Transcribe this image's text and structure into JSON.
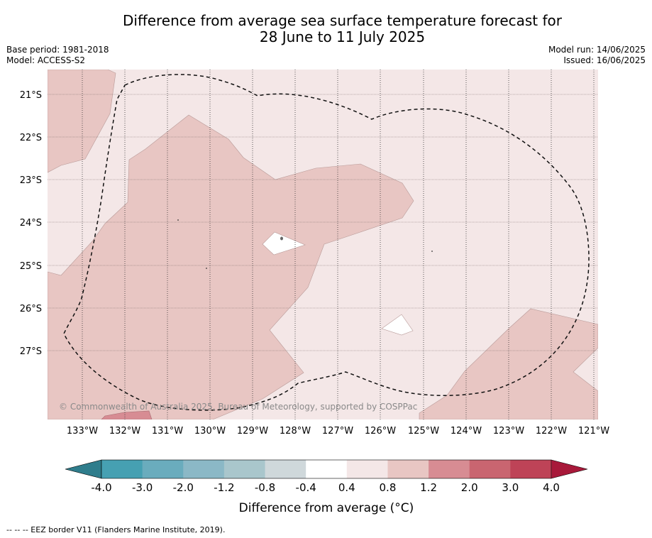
{
  "title_line1": "Difference from average sea surface temperature forecast for",
  "title_line2": "28 June to 11 July 2025",
  "base_period": "Base period: 1981-2018",
  "model": "Model: ACCESS-S2",
  "model_run": "Model run: 14/06/2025",
  "issued": "Issued: 16/06/2025",
  "credit": "© Commonwealth of Australia 2025, Bureau of Meteorology, supported by COSPPac",
  "footnote": "--  --  -- EEZ border V11 (Flanders Marine Institute, 2019).",
  "map": {
    "lat_labels": [
      "21°S",
      "22°S",
      "23°S",
      "24°S",
      "25°S",
      "26°S",
      "27°S"
    ],
    "lon_labels": [
      "133°W",
      "132°W",
      "131°W",
      "130°W",
      "129°W",
      "128°W",
      "127°W",
      "126°W",
      "125°W",
      "124°W",
      "123°W",
      "122°W",
      "121°W"
    ]
  },
  "colorbar": {
    "title": "Difference from average (°C)",
    "tick_labels": [
      "-4.0",
      "-3.0",
      "-2.0",
      "-1.2",
      "-0.8",
      "-0.4",
      "0.4",
      "0.8",
      "1.2",
      "2.0",
      "3.0",
      "4.0"
    ],
    "colors": [
      "#2f7d8c",
      "#46a0b2",
      "#6aacbd",
      "#8bb8c6",
      "#a9c6cc",
      "#cfd8db",
      "#ffffff",
      "#f4e7e7",
      "#e8c6c3",
      "#d78c93",
      "#c96570",
      "#be4357",
      "#a8193a"
    ]
  },
  "colors": {
    "anomaly_04_08": "#f4e7e7",
    "anomaly_08_12": "#e8c6c3",
    "anomaly_12_20": "#d78c93",
    "near_average": "#ffffff"
  }
}
